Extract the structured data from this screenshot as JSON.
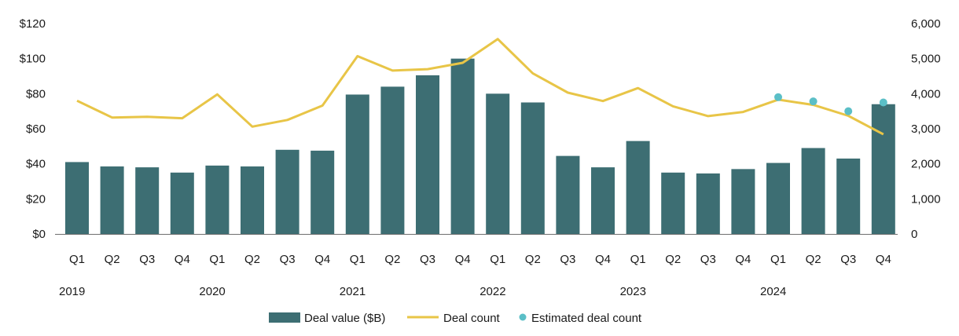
{
  "chart_data": {
    "type": "bar",
    "categories": [
      "Q1",
      "Q2",
      "Q3",
      "Q4",
      "Q1",
      "Q2",
      "Q3",
      "Q4",
      "Q1",
      "Q2",
      "Q3",
      "Q4",
      "Q1",
      "Q2",
      "Q3",
      "Q4",
      "Q1",
      "Q2",
      "Q3",
      "Q4",
      "Q1",
      "Q2",
      "Q3",
      "Q4"
    ],
    "years": [
      {
        "label": "2019",
        "start_index": 0
      },
      {
        "label": "2020",
        "start_index": 4
      },
      {
        "label": "2021",
        "start_index": 8
      },
      {
        "label": "2022",
        "start_index": 12
      },
      {
        "label": "2023",
        "start_index": 16
      },
      {
        "label": "2024",
        "start_index": 20
      }
    ],
    "series": [
      {
        "name": "Deal value ($B)",
        "kind": "bar",
        "axis": "left",
        "color": "#3d6e73",
        "values": [
          41,
          38.5,
          38,
          35,
          39,
          38.5,
          48,
          47.5,
          79.5,
          84,
          90.5,
          100,
          80,
          75,
          44.5,
          38,
          53,
          35,
          34.5,
          37,
          40.5,
          49,
          43,
          74
        ]
      },
      {
        "name": "Deal count",
        "kind": "line",
        "axis": "right",
        "color": "#e8c547",
        "values": [
          3800,
          3320,
          3340,
          3300,
          3980,
          3060,
          3250,
          3660,
          5070,
          4660,
          4700,
          4880,
          5560,
          4580,
          4030,
          3790,
          4160,
          3640,
          3360,
          3480,
          3830,
          3680,
          3370,
          2840
        ]
      },
      {
        "name": "Estimated deal count",
        "kind": "scatter",
        "axis": "right",
        "color": "#5bbfc7",
        "points": [
          {
            "index": 20,
            "value": 3900
          },
          {
            "index": 21,
            "value": 3780
          },
          {
            "index": 22,
            "value": 3500
          },
          {
            "index": 23,
            "value": 3750
          }
        ]
      }
    ],
    "y_left": {
      "min": 0,
      "max": 120,
      "step": 20,
      "tick_labels": [
        "$0",
        "$20",
        "$40",
        "$60",
        "$80",
        "$100",
        "$120"
      ]
    },
    "y_right": {
      "min": 0,
      "max": 6000,
      "step": 1000,
      "tick_labels": [
        "0",
        "1,000",
        "2,000",
        "3,000",
        "4,000",
        "5,000",
        "6,000"
      ]
    },
    "title": "",
    "xlabel": "",
    "ylabel": "",
    "grid": false,
    "legend_position": "bottom-center"
  }
}
